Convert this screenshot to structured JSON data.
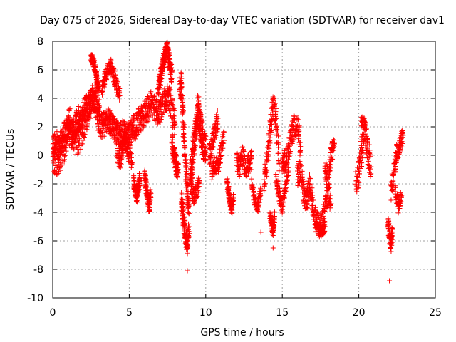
{
  "chart_data": {
    "type": "scatter",
    "title": "Day 075 of 2026, Sidereal Day-to-day VTEC variation (SDTVAR) for receiver dav1",
    "xlabel": "GPS time / hours",
    "ylabel": "SDTVAR / TECUs",
    "xlim": [
      0,
      25
    ],
    "ylim": [
      -10,
      8
    ],
    "xticks": [
      "0",
      "5",
      "10",
      "15",
      "20",
      "25"
    ],
    "yticks": [
      "-10",
      "-8",
      "-6",
      "-4",
      "-2",
      "0",
      "2",
      "4",
      "6",
      "8"
    ],
    "grid": true,
    "marker": "+",
    "color": "#ff0000",
    "series": [
      {
        "name": "SDTVAR",
        "segments": [
          {
            "x": [
              0.0,
              0.2,
              0.4,
              0.6,
              0.8,
              1.0,
              1.2,
              1.4,
              1.6,
              1.8,
              2.0,
              2.2,
              2.4,
              2.6,
              2.8,
              3.0,
              3.2,
              3.4,
              3.6,
              3.8,
              4.0,
              4.2,
              4.4,
              4.6,
              4.8,
              5.0,
              5.2,
              5.4,
              5.6,
              5.8,
              6.0,
              6.2,
              6.4,
              6.6,
              6.8,
              7.0,
              7.2,
              7.4,
              7.6,
              7.8,
              8.0
            ],
            "y": [
              0.5,
              1.0,
              0.6,
              0.9,
              1.6,
              1.8,
              1.2,
              1.9,
              2.4,
              2.8,
              3.0,
              3.3,
              3.6,
              4.2,
              3.8,
              2.4,
              2.0,
              2.2,
              2.6,
              2.2,
              1.8,
              1.6,
              1.4,
              1.6,
              1.2,
              1.6,
              1.8,
              2.0,
              2.4,
              2.6,
              3.0,
              3.2,
              3.6,
              3.4,
              3.0,
              3.2,
              3.6,
              4.0,
              4.2,
              3.0,
              2.2
            ],
            "spread": 0.9
          },
          {
            "x": [
              0.05,
              0.3,
              0.55,
              0.8,
              1.05,
              1.3,
              1.55,
              1.8,
              2.05,
              2.3,
              2.55,
              2.8,
              3.05
            ],
            "y": [
              -0.3,
              -0.6,
              0.1,
              0.5,
              2.6,
              1.5,
              0.8,
              1.4,
              2.2,
              3.0,
              3.8,
              4.4,
              3.4
            ],
            "spread": 1.0
          },
          {
            "x": [
              2.5,
              2.6,
              2.7,
              2.8,
              2.9,
              3.0
            ],
            "y": [
              6.9,
              6.7,
              6.4,
              6.0,
              5.2,
              4.8
            ],
            "spread": 0.3
          },
          {
            "x": [
              3.2,
              3.4,
              3.6,
              3.8,
              4.0,
              4.2,
              4.4
            ],
            "y": [
              4.6,
              5.4,
              6.0,
              6.3,
              5.5,
              4.8,
              4.2
            ],
            "spread": 0.5
          },
          {
            "x": [
              4.2,
              4.4,
              4.6,
              4.8,
              5.0,
              5.2
            ],
            "y": [
              0.3,
              -0.2,
              0.6,
              1.0,
              0.2,
              -0.5
            ],
            "spread": 0.8
          },
          {
            "x": [
              5.3,
              5.4,
              5.5,
              5.6,
              5.7
            ],
            "y": [
              -1.8,
              -2.4,
              -2.8,
              -2.2,
              -1.6
            ],
            "spread": 0.5
          },
          {
            "x": [
              6.0,
              6.1,
              6.2,
              6.3,
              6.4
            ],
            "y": [
              -1.5,
              -2.2,
              -3.0,
              -3.6,
              -2.6
            ],
            "spread": 0.5
          },
          {
            "x": [
              6.9,
              7.0,
              7.1,
              7.2,
              7.3,
              7.4,
              7.5,
              7.6,
              7.7,
              7.8
            ],
            "y": [
              4.8,
              5.2,
              5.8,
              6.4,
              6.8,
              7.2,
              7.4,
              6.8,
              6.0,
              5.4
            ],
            "spread": 0.6
          },
          {
            "x": [
              7.8,
              7.9,
              8.0,
              8.1,
              8.2
            ],
            "y": [
              1.0,
              0.2,
              -0.4,
              -1.0,
              -0.6
            ],
            "spread": 0.7
          },
          {
            "x": [
              8.3,
              8.4,
              8.5,
              8.6,
              8.7,
              8.8,
              8.9
            ],
            "y": [
              4.5,
              5.0,
              3.2,
              1.0,
              -1.0,
              -2.6,
              -3.5
            ],
            "spread": 0.9
          },
          {
            "x": [
              8.4,
              8.5,
              8.6,
              8.7,
              8.8,
              8.9
            ],
            "y": [
              -3.0,
              -4.0,
              -5.0,
              -5.8,
              -6.2,
              -5.0
            ],
            "spread": 0.7
          },
          {
            "x": [
              8.8
            ],
            "y": [
              -8.1
            ],
            "spread": 0.0
          },
          {
            "x": [
              9.0,
              9.1,
              9.2,
              9.3,
              9.4,
              9.5,
              9.6,
              9.7,
              9.8,
              9.9,
              10.0
            ],
            "y": [
              -1.5,
              -0.5,
              0.5,
              1.2,
              2.2,
              3.2,
              2.5,
              1.8,
              1.0,
              0.6,
              0.2
            ],
            "spread": 1.1
          },
          {
            "x": [
              9.0,
              9.2,
              9.4,
              9.6
            ],
            "y": [
              -2.0,
              -3.0,
              -2.6,
              -1.8
            ],
            "spread": 0.6
          },
          {
            "x": [
              10.2,
              10.4,
              10.6,
              10.8
            ],
            "y": [
              0.0,
              0.6,
              1.8,
              2.6
            ],
            "spread": 0.8
          },
          {
            "x": [
              10.4,
              10.6,
              10.8,
              11.0,
              11.2
            ],
            "y": [
              -1.2,
              -0.6,
              -0.8,
              0.2,
              1.6
            ],
            "spread": 0.6
          },
          {
            "x": [
              11.4,
              11.5,
              11.6,
              11.7,
              11.8
            ],
            "y": [
              -1.8,
              -2.6,
              -3.2,
              -3.8,
              -3.0
            ],
            "spread": 0.4
          },
          {
            "x": [
              12.0,
              12.2,
              12.4,
              12.6,
              12.8,
              13.0
            ],
            "y": [
              -0.4,
              -0.8,
              0.0,
              -1.0,
              -0.6,
              -0.2
            ],
            "spread": 0.7
          },
          {
            "x": [
              13.0,
              13.2,
              13.4,
              13.6
            ],
            "y": [
              -2.0,
              -3.2,
              -3.6,
              -2.4
            ],
            "spread": 0.4
          },
          {
            "x": [
              13.6
            ],
            "y": [
              -5.4
            ],
            "spread": 0.0
          },
          {
            "x": [
              13.8,
              14.0,
              14.2,
              14.4,
              14.6,
              14.8
            ],
            "y": [
              -2.0,
              -0.5,
              1.6,
              3.6,
              2.4,
              -0.6
            ],
            "spread": 0.9
          },
          {
            "x": [
              14.2,
              14.3,
              14.4,
              14.5
            ],
            "y": [
              -4.2,
              -4.8,
              -5.4,
              -4.0
            ],
            "spread": 0.4
          },
          {
            "x": [
              14.4
            ],
            "y": [
              -6.5
            ],
            "spread": 0.0
          },
          {
            "x": [
              14.6,
              14.8,
              15.0,
              15.2,
              15.4
            ],
            "y": [
              -1.6,
              -2.8,
              -3.6,
              -2.4,
              -1.2
            ],
            "spread": 0.5
          },
          {
            "x": [
              15.0,
              15.2,
              15.4,
              15.6,
              15.8,
              16.0,
              16.2
            ],
            "y": [
              -0.6,
              -0.4,
              0.4,
              1.4,
              2.2,
              2.0,
              0.6
            ],
            "spread": 0.8
          },
          {
            "x": [
              16.0,
              16.2,
              16.4,
              16.6,
              16.8,
              17.0,
              17.2,
              17.4,
              17.6,
              17.8,
              18.0,
              18.2
            ],
            "y": [
              -1.4,
              -1.0,
              -2.6,
              -3.2,
              -2.0,
              -3.6,
              -4.6,
              -5.0,
              -4.8,
              -3.8,
              -2.6,
              -3.4
            ],
            "spread": 0.8
          },
          {
            "x": [
              17.2,
              17.4,
              17.6,
              17.8
            ],
            "y": [
              -4.8,
              -5.2,
              -5.4,
              -5.0
            ],
            "spread": 0.3
          },
          {
            "x": [
              17.8,
              18.0,
              18.2,
              18.4
            ],
            "y": [
              -1.0,
              -1.6,
              0.0,
              0.8
            ],
            "spread": 0.7
          },
          {
            "x": [
              19.8,
              20.0,
              20.2,
              20.4,
              20.6,
              20.8
            ],
            "y": [
              -2.0,
              -1.2,
              0.4,
              1.8,
              0.2,
              -0.8
            ],
            "spread": 1.0
          },
          {
            "x": [
              20.2,
              20.4
            ],
            "y": [
              2.4,
              2.2
            ],
            "spread": 0.4
          },
          {
            "x": [
              21.9,
              22.0,
              22.1,
              22.2
            ],
            "y": [
              -4.6,
              -5.6,
              -6.4,
              -5.2
            ],
            "spread": 0.5
          },
          {
            "x": [
              22.0
            ],
            "y": [
              -8.8
            ],
            "spread": 0.0
          },
          {
            "x": [
              22.1,
              22.3,
              22.5,
              22.7,
              22.9
            ],
            "y": [
              -2.6,
              -1.0,
              0.2,
              0.8,
              1.4
            ],
            "spread": 0.6
          },
          {
            "x": [
              22.4,
              22.6,
              22.8
            ],
            "y": [
              -2.6,
              -3.6,
              -2.8
            ],
            "spread": 0.5
          }
        ]
      }
    ]
  }
}
